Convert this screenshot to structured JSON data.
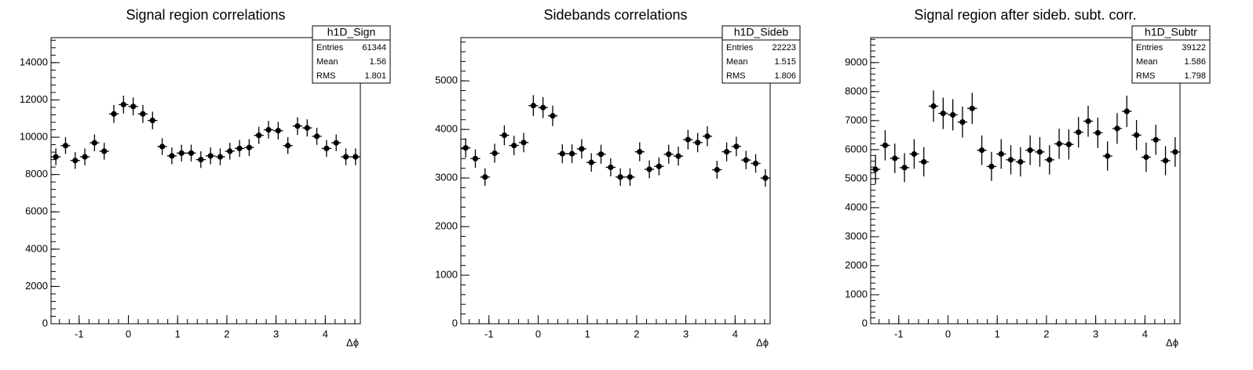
{
  "chart_data": [
    {
      "type": "histogram",
      "title": "Signal region correlations",
      "x_label": "Δϕ",
      "bins": [
        -1.5708,
        -1.3744,
        -1.1781,
        -0.9817,
        -0.7854,
        -0.589,
        -0.3927,
        -0.1963,
        0,
        0.1963,
        0.3927,
        0.589,
        0.7854,
        0.9817,
        1.1781,
        1.3744,
        1.5708,
        1.7671,
        1.9635,
        2.1598,
        2.3562,
        2.5525,
        2.7489,
        2.9452,
        3.1416,
        3.3379,
        3.5343,
        3.7306,
        3.927,
        4.1233,
        4.3197,
        4.516,
        4.7124
      ],
      "values": [
        8950,
        9550,
        8750,
        8950,
        9700,
        9250,
        11250,
        11750,
        11650,
        11250,
        10900,
        9500,
        9000,
        9150,
        9150,
        8800,
        9000,
        8950,
        9250,
        9400,
        9450,
        10100,
        10400,
        10350,
        9550,
        10600,
        10500,
        10050,
        9400,
        9700,
        8950,
        8950
      ],
      "errors": [
        450,
        450,
        450,
        450,
        450,
        450,
        480,
        480,
        480,
        480,
        470,
        450,
        450,
        450,
        450,
        450,
        450,
        450,
        450,
        450,
        450,
        460,
        470,
        470,
        450,
        470,
        460,
        460,
        450,
        450,
        450,
        450
      ],
      "color": "#000000",
      "xlim": [
        -1.5708,
        4.7124
      ],
      "xticks": [
        -1,
        0,
        1,
        2,
        3,
        4
      ],
      "ylim": [
        0,
        15340
      ],
      "yticks": [
        0,
        2000,
        4000,
        6000,
        8000,
        10000,
        12000,
        14000
      ],
      "stats": {
        "name": "h1D_Sign",
        "rows": [
          {
            "label": "Entries",
            "value": 61344
          },
          {
            "label": "Mean",
            "value": 1.56
          },
          {
            "label": "RMS",
            "value": 1.801
          }
        ]
      }
    },
    {
      "type": "histogram",
      "title": "Sidebands correlations",
      "x_label": "Δϕ",
      "bins": [
        -1.5708,
        -1.3744,
        -1.1781,
        -0.9817,
        -0.7854,
        -0.589,
        -0.3927,
        -0.1963,
        0,
        0.1963,
        0.3927,
        0.589,
        0.7854,
        0.9817,
        1.1781,
        1.3744,
        1.5708,
        1.7671,
        1.9635,
        2.1598,
        2.3562,
        2.5525,
        2.7489,
        2.9452,
        3.1416,
        3.3379,
        3.5343,
        3.7306,
        3.927,
        4.1233,
        4.3197,
        4.516,
        4.7124
      ],
      "values": [
        3620,
        3400,
        3020,
        3510,
        3880,
        3670,
        3730,
        4490,
        4450,
        4280,
        3500,
        3500,
        3600,
        3320,
        3490,
        3220,
        3020,
        3020,
        3540,
        3180,
        3240,
        3490,
        3450,
        3790,
        3730,
        3860,
        3170,
        3540,
        3650,
        3370,
        3300,
        3000
      ],
      "errors": [
        200,
        190,
        180,
        195,
        205,
        200,
        200,
        215,
        215,
        210,
        195,
        195,
        200,
        190,
        195,
        185,
        180,
        180,
        195,
        185,
        185,
        195,
        195,
        200,
        200,
        205,
        185,
        195,
        200,
        190,
        190,
        180
      ],
      "color": "#000000",
      "xlim": [
        -1.5708,
        4.7124
      ],
      "xticks": [
        -1,
        0,
        1,
        2,
        3,
        4
      ],
      "ylim": [
        0,
        5890
      ],
      "yticks": [
        0,
        1000,
        2000,
        3000,
        4000,
        5000
      ],
      "stats": {
        "name": "h1D_Sideb",
        "rows": [
          {
            "label": "Entries",
            "value": 22223
          },
          {
            "label": "Mean",
            "value": 1.515
          },
          {
            "label": "RMS",
            "value": 1.806
          }
        ]
      }
    },
    {
      "type": "histogram",
      "title": "Signal region after sideb. subt. corr.",
      "x_label": "Δϕ",
      "bins": [
        -1.5708,
        -1.3744,
        -1.1781,
        -0.9817,
        -0.7854,
        -0.589,
        -0.3927,
        -0.1963,
        0,
        0.1963,
        0.3927,
        0.589,
        0.7854,
        0.9817,
        1.1781,
        1.3744,
        1.5708,
        1.7671,
        1.9635,
        2.1598,
        2.3562,
        2.5525,
        2.7489,
        2.9452,
        3.1416,
        3.3379,
        3.5343,
        3.7306,
        3.927,
        4.1233,
        4.3197,
        4.516,
        4.7124
      ],
      "values": [
        5320,
        6150,
        5700,
        5380,
        5850,
        5580,
        7500,
        7250,
        7200,
        6950,
        7420,
        5980,
        5420,
        5850,
        5650,
        5580,
        5980,
        5920,
        5650,
        6200,
        6180,
        6600,
        6980,
        6580,
        5780,
        6730,
        7320,
        6500,
        5740,
        6340,
        5620,
        5920
      ],
      "errors": [
        500,
        520,
        510,
        500,
        510,
        505,
        540,
        540,
        540,
        535,
        540,
        510,
        500,
        510,
        505,
        505,
        510,
        510,
        505,
        520,
        520,
        525,
        535,
        525,
        505,
        530,
        540,
        520,
        505,
        520,
        500,
        510
      ],
      "color": "#000000",
      "xlim": [
        -1.5708,
        4.7124
      ],
      "xticks": [
        -1,
        0,
        1,
        2,
        3,
        4
      ],
      "ylim": [
        0,
        9860
      ],
      "yticks": [
        0,
        1000,
        2000,
        3000,
        4000,
        5000,
        6000,
        7000,
        8000,
        9000
      ],
      "stats": {
        "name": "h1D_Subtr",
        "rows": [
          {
            "label": "Entries",
            "value": 39122
          },
          {
            "label": "Mean",
            "value": 1.586
          },
          {
            "label": "RMS",
            "value": 1.798
          }
        ]
      }
    }
  ]
}
